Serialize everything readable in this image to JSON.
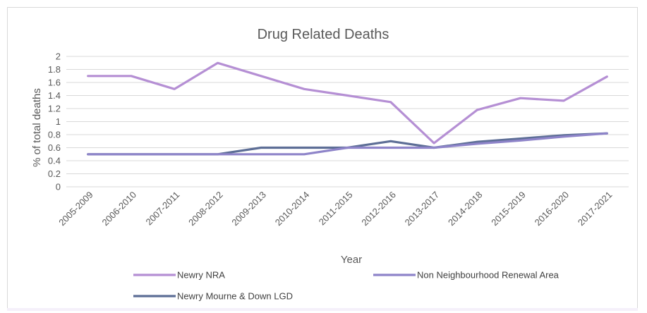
{
  "chart_data": {
    "type": "line",
    "title": "Drug Related Deaths",
    "xlabel": "Year",
    "ylabel": "% of total deaths",
    "categories": [
      "2005-2009",
      "2006-2010",
      "2007-2011",
      "2008-2012",
      "2009-2013",
      "2010-2014",
      "2011-2015",
      "2012-2016",
      "2013-2017",
      "2014-2018",
      "2015-2019",
      "2016-2020",
      "2017-2021"
    ],
    "yticks": [
      "0",
      "0.2",
      "0.4",
      "0.6",
      "0.8",
      "1",
      "1.2",
      "1.4",
      "1.6",
      "1.8",
      "2"
    ],
    "ylim": [
      0,
      2
    ],
    "grid": true,
    "legend_position": "bottom",
    "series": [
      {
        "name": "Newry NRA",
        "color": "#b58fd4",
        "values": [
          1.7,
          1.7,
          1.5,
          1.9,
          1.7,
          1.5,
          1.4,
          1.3,
          0.67,
          1.18,
          1.36,
          1.32,
          1.69
        ]
      },
      {
        "name": "Non Neighbourhood Renewal Area",
        "color": "#8e84c9",
        "values": [
          0.5,
          0.5,
          0.5,
          0.5,
          0.5,
          0.5,
          0.6,
          0.6,
          0.6,
          0.66,
          0.71,
          0.77,
          0.82
        ]
      },
      {
        "name": "Newry Mourne & Down LGD",
        "color": "#5d6e96",
        "values": [
          0.5,
          0.5,
          0.5,
          0.5,
          0.6,
          0.6,
          0.6,
          0.7,
          0.6,
          0.69,
          0.74,
          0.79,
          0.82
        ]
      }
    ]
  }
}
